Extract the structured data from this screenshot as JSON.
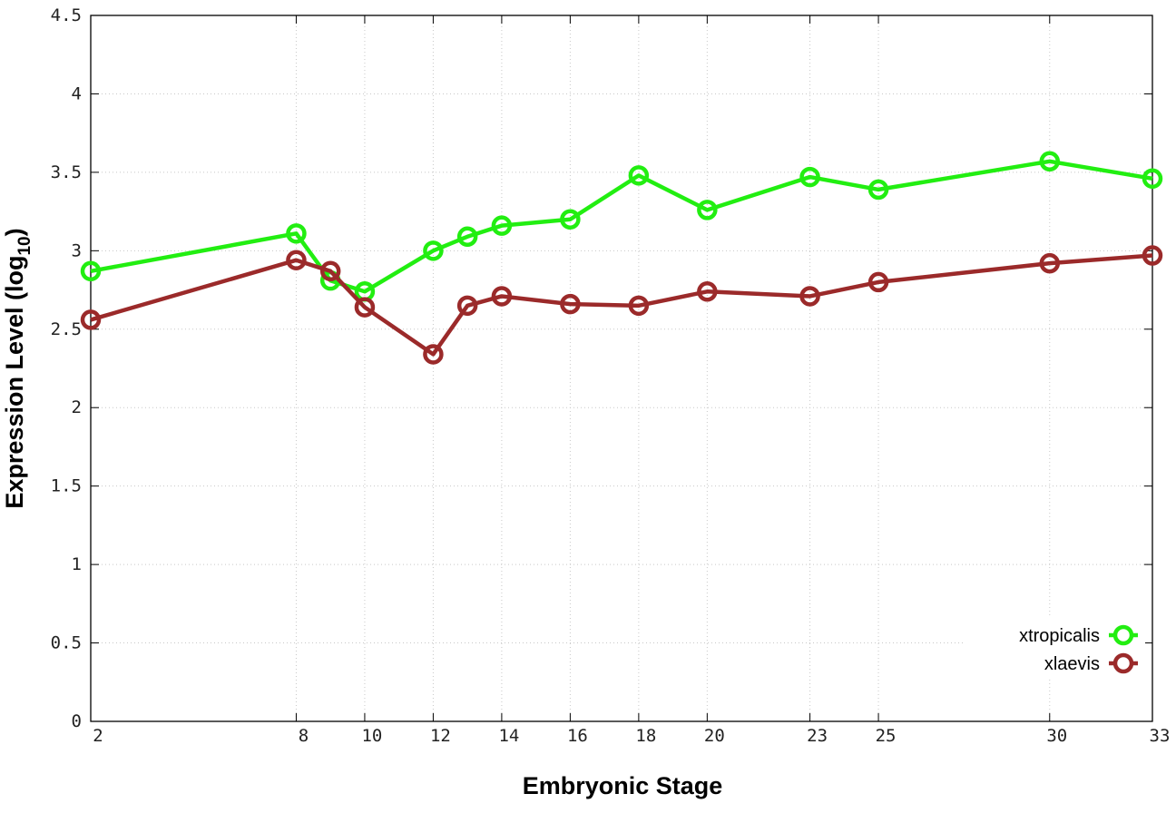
{
  "chart_data": {
    "type": "line",
    "xlabel": "Embryonic Stage",
    "ylabel_main": "Expression Level (log",
    "ylabel_sub": "10",
    "ylabel_close": ")",
    "xlim": [
      2,
      33
    ],
    "ylim": [
      0,
      4.5
    ],
    "x_ticks": [
      2,
      8,
      10,
      12,
      14,
      16,
      18,
      20,
      23,
      25,
      30,
      33
    ],
    "x_tick_labels": [
      "2",
      "8",
      "10",
      "12",
      "14",
      "16",
      "18",
      "20",
      "23",
      "25",
      "30",
      "33"
    ],
    "y_ticks": [
      0,
      0.5,
      1,
      1.5,
      2,
      2.5,
      3,
      3.5,
      4,
      4.5
    ],
    "y_tick_labels": [
      "0",
      "0.5",
      "1",
      "1.5",
      "2",
      "2.5",
      "3",
      "3.5",
      "4",
      "4.5"
    ],
    "grid": true,
    "legend_position": "bottom-right",
    "series": [
      {
        "name": "xtropicalis",
        "color": "#22ee11",
        "x": [
          2,
          8,
          9,
          10,
          12,
          13,
          14,
          16,
          18,
          20,
          23,
          25,
          30,
          33
        ],
        "y": [
          2.87,
          3.11,
          2.81,
          2.74,
          3.0,
          3.09,
          3.16,
          3.2,
          3.48,
          3.26,
          3.47,
          3.39,
          3.57,
          3.46
        ]
      },
      {
        "name": "xlaevis",
        "color": "#9b2a2a",
        "x": [
          2,
          8,
          9,
          10,
          12,
          13,
          14,
          16,
          18,
          20,
          23,
          25,
          30,
          33
        ],
        "y": [
          2.56,
          2.94,
          2.87,
          2.64,
          2.34,
          2.65,
          2.71,
          2.66,
          2.65,
          2.74,
          2.71,
          2.8,
          2.92,
          2.97
        ]
      }
    ]
  }
}
